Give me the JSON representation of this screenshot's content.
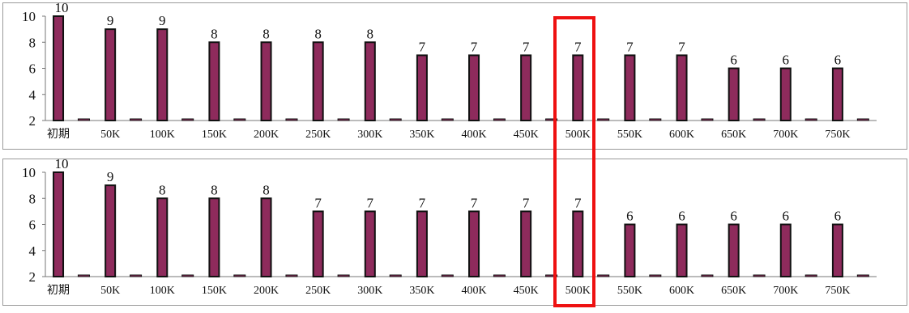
{
  "colors": {
    "bar_main": "#8e2b5c",
    "bar_edge": "#111111",
    "highlight": "#ee1111"
  },
  "highlight_category": "500K",
  "chart_data": [
    {
      "type": "bar",
      "categories": [
        "初期",
        "50K",
        "100K",
        "150K",
        "200K",
        "250K",
        "300K",
        "350K",
        "400K",
        "450K",
        "500K",
        "550K",
        "600K",
        "650K",
        "700K",
        "750K"
      ],
      "series": [
        {
          "values": [
            10,
            9,
            9,
            8,
            8,
            8,
            8,
            7,
            7,
            7,
            7,
            7,
            7,
            6,
            6,
            6
          ]
        },
        {
          "values": [
            2,
            2,
            2,
            2,
            2,
            2,
            2,
            2,
            2,
            2,
            2,
            2,
            2,
            2,
            2,
            2
          ]
        }
      ],
      "data_labels": [
        "10",
        "9",
        "9",
        "8",
        "8",
        "8",
        "8",
        "7",
        "7",
        "7",
        "7",
        "7",
        "7",
        "6",
        "6",
        "6"
      ],
      "yticks": [
        2,
        4,
        6,
        8,
        10
      ],
      "ylim": [
        2,
        10
      ],
      "grid": false
    },
    {
      "type": "bar",
      "categories": [
        "初期",
        "50K",
        "100K",
        "150K",
        "200K",
        "250K",
        "300K",
        "350K",
        "400K",
        "450K",
        "500K",
        "550K",
        "600K",
        "650K",
        "700K",
        "750K"
      ],
      "series": [
        {
          "values": [
            10,
            9,
            8,
            8,
            8,
            7,
            7,
            7,
            7,
            7,
            7,
            6,
            6,
            6,
            6,
            6
          ]
        },
        {
          "values": [
            2,
            2,
            2,
            2,
            2,
            2,
            2,
            2,
            2,
            2,
            2,
            2,
            2,
            2,
            2,
            2
          ]
        }
      ],
      "data_labels": [
        "10",
        "9",
        "8",
        "8",
        "8",
        "7",
        "7",
        "7",
        "7",
        "7",
        "7",
        "6",
        "6",
        "6",
        "6",
        "6"
      ],
      "yticks": [
        2,
        4,
        6,
        8,
        10
      ],
      "ylim": [
        2,
        10
      ],
      "grid": false
    }
  ]
}
